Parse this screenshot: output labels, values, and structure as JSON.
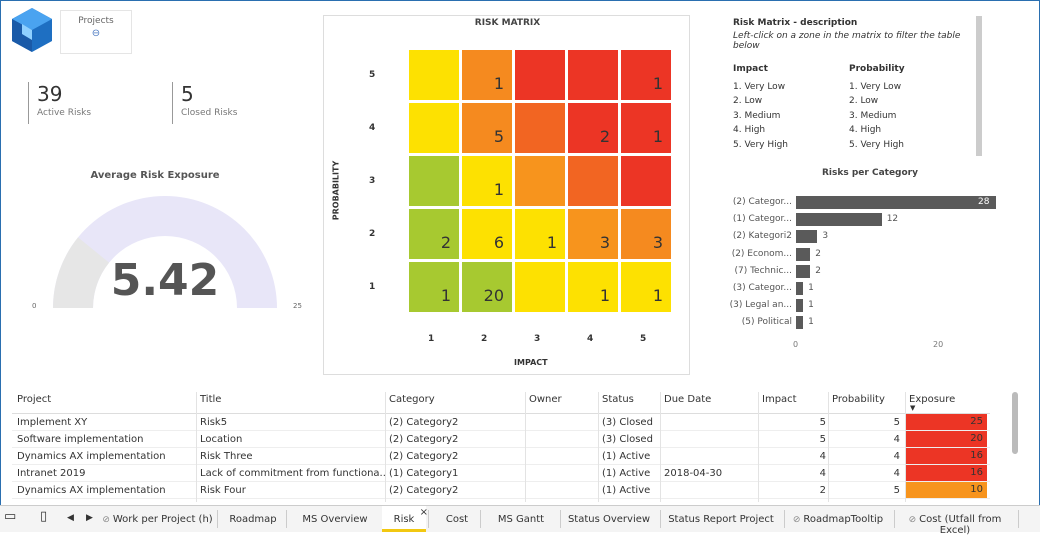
{
  "projects_card": {
    "label": "Projects",
    "icon": "link-icon"
  },
  "kpis": [
    {
      "value": "39",
      "label": "Active Risks"
    },
    {
      "value": "5",
      "label": "Closed Risks"
    }
  ],
  "gauge": {
    "title": "Average Risk Exposure",
    "value": "5.42",
    "min": "0",
    "max": "25",
    "fill_fraction": 0.217,
    "track_color": "#e8e6f8",
    "fill_color": "#e6e6e6"
  },
  "matrix": {
    "title": "RISK MATRIX",
    "y_axis_label": "PROBABILITY",
    "x_axis_label": "IMPACT",
    "x_ticks": [
      "1",
      "2",
      "3",
      "4",
      "5"
    ],
    "y_ticks": [
      "5",
      "4",
      "3",
      "2",
      "1"
    ],
    "rows": [
      [
        {
          "v": "",
          "c": "#fde101"
        },
        {
          "v": "1",
          "c": "#f58a1f"
        },
        {
          "v": "",
          "c": "#ec3525"
        },
        {
          "v": "",
          "c": "#ec3525"
        },
        {
          "v": "1",
          "c": "#ec3525"
        }
      ],
      [
        {
          "v": "",
          "c": "#fde101"
        },
        {
          "v": "5",
          "c": "#f58a1f"
        },
        {
          "v": "",
          "c": "#f26522"
        },
        {
          "v": "2",
          "c": "#ec3525"
        },
        {
          "v": "1",
          "c": "#ec3525"
        }
      ],
      [
        {
          "v": "",
          "c": "#a7c930"
        },
        {
          "v": "1",
          "c": "#fde101"
        },
        {
          "v": "",
          "c": "#f7941d"
        },
        {
          "v": "",
          "c": "#f26522"
        },
        {
          "v": "",
          "c": "#ec3525"
        }
      ],
      [
        {
          "v": "2",
          "c": "#a7c930"
        },
        {
          "v": "6",
          "c": "#fde101"
        },
        {
          "v": "1",
          "c": "#fde101"
        },
        {
          "v": "3",
          "c": "#f7941d"
        },
        {
          "v": "3",
          "c": "#f58a1f"
        }
      ],
      [
        {
          "v": "1",
          "c": "#a7c930"
        },
        {
          "v": "20",
          "c": "#a7c930"
        },
        {
          "v": "",
          "c": "#fde101"
        },
        {
          "v": "1",
          "c": "#fde101"
        },
        {
          "v": "1",
          "c": "#fde101"
        }
      ]
    ]
  },
  "description": {
    "title": "Risk Matrix - description",
    "hint": "Left-click on a zone in the matrix to filter the table below",
    "impact": {
      "header": "Impact",
      "items": [
        "1. Very Low",
        "2. Low",
        "3. Medium",
        "4. High",
        "5. Very High"
      ]
    },
    "probability": {
      "header": "Probability",
      "items": [
        "1. Very Low",
        "2. Low",
        "3. Medium",
        "4. High",
        "5. Very High"
      ]
    }
  },
  "category_chart": {
    "title": "Risks per Category",
    "axis_ticks": [
      "0",
      "20"
    ]
  },
  "chart_data": {
    "type": "bar",
    "title": "Risks per Category",
    "categories": [
      "(2) Categor...",
      "(1) Categor...",
      "(2) Kategori2",
      "(2) Econom...",
      "(7) Technic...",
      "(3) Categor...",
      "(3) Legal an...",
      "(5) Political"
    ],
    "values": [
      28,
      12,
      3,
      2,
      2,
      1,
      1,
      1
    ],
    "xlim": [
      0,
      28
    ]
  },
  "table": {
    "headers": [
      "Project",
      "Title",
      "Category",
      "Owner",
      "Status",
      "Due Date",
      "Impact",
      "Probability",
      "Exposure"
    ],
    "rows": [
      {
        "project": "Implement XY",
        "title": "Risk5",
        "category": "(2) Category2",
        "owner": "",
        "status": "(3) Closed",
        "due": "",
        "impact": "5",
        "probability": "5",
        "exposure": "25",
        "color": "#ec3525"
      },
      {
        "project": "Software implementation",
        "title": "Location",
        "category": "(2) Category2",
        "owner": "",
        "status": "(3) Closed",
        "due": "",
        "impact": "5",
        "probability": "4",
        "exposure": "20",
        "color": "#ec3525"
      },
      {
        "project": "Dynamics AX implementation",
        "title": "Risk Three",
        "category": "(2) Category2",
        "owner": "",
        "status": "(1) Active",
        "due": "",
        "impact": "4",
        "probability": "4",
        "exposure": "16",
        "color": "#ec3525"
      },
      {
        "project": "Intranet 2019",
        "title": "Lack of commitment from functiona...",
        "category": "(1) Category1",
        "owner": "",
        "status": "(1) Active",
        "due": "2018-04-30",
        "impact": "4",
        "probability": "4",
        "exposure": "16",
        "color": "#ec3525"
      },
      {
        "project": "Dynamics AX implementation",
        "title": "Risk Four",
        "category": "(2) Category2",
        "owner": "",
        "status": "(1) Active",
        "due": "",
        "impact": "2",
        "probability": "5",
        "exposure": "10",
        "color": "#f7941d"
      }
    ]
  },
  "tabs": [
    {
      "label": "Work per Project (h)",
      "icon": "eye-slash-icon",
      "active": false
    },
    {
      "label": "Roadmap",
      "active": false
    },
    {
      "label": "MS Overview",
      "active": false
    },
    {
      "label": "Risk",
      "active": true
    },
    {
      "label": "Cost",
      "active": false
    },
    {
      "label": "MS Gantt",
      "active": false
    },
    {
      "label": "Status Overview",
      "active": false
    },
    {
      "label": "Status Report Project",
      "active": false
    },
    {
      "label": "RoadmapTooltip",
      "icon": "eye-slash-icon",
      "active": false
    },
    {
      "label": "Cost (Utfall from Excel)",
      "icon": "eye-slash-icon",
      "active": false
    }
  ],
  "tab_close": "×"
}
